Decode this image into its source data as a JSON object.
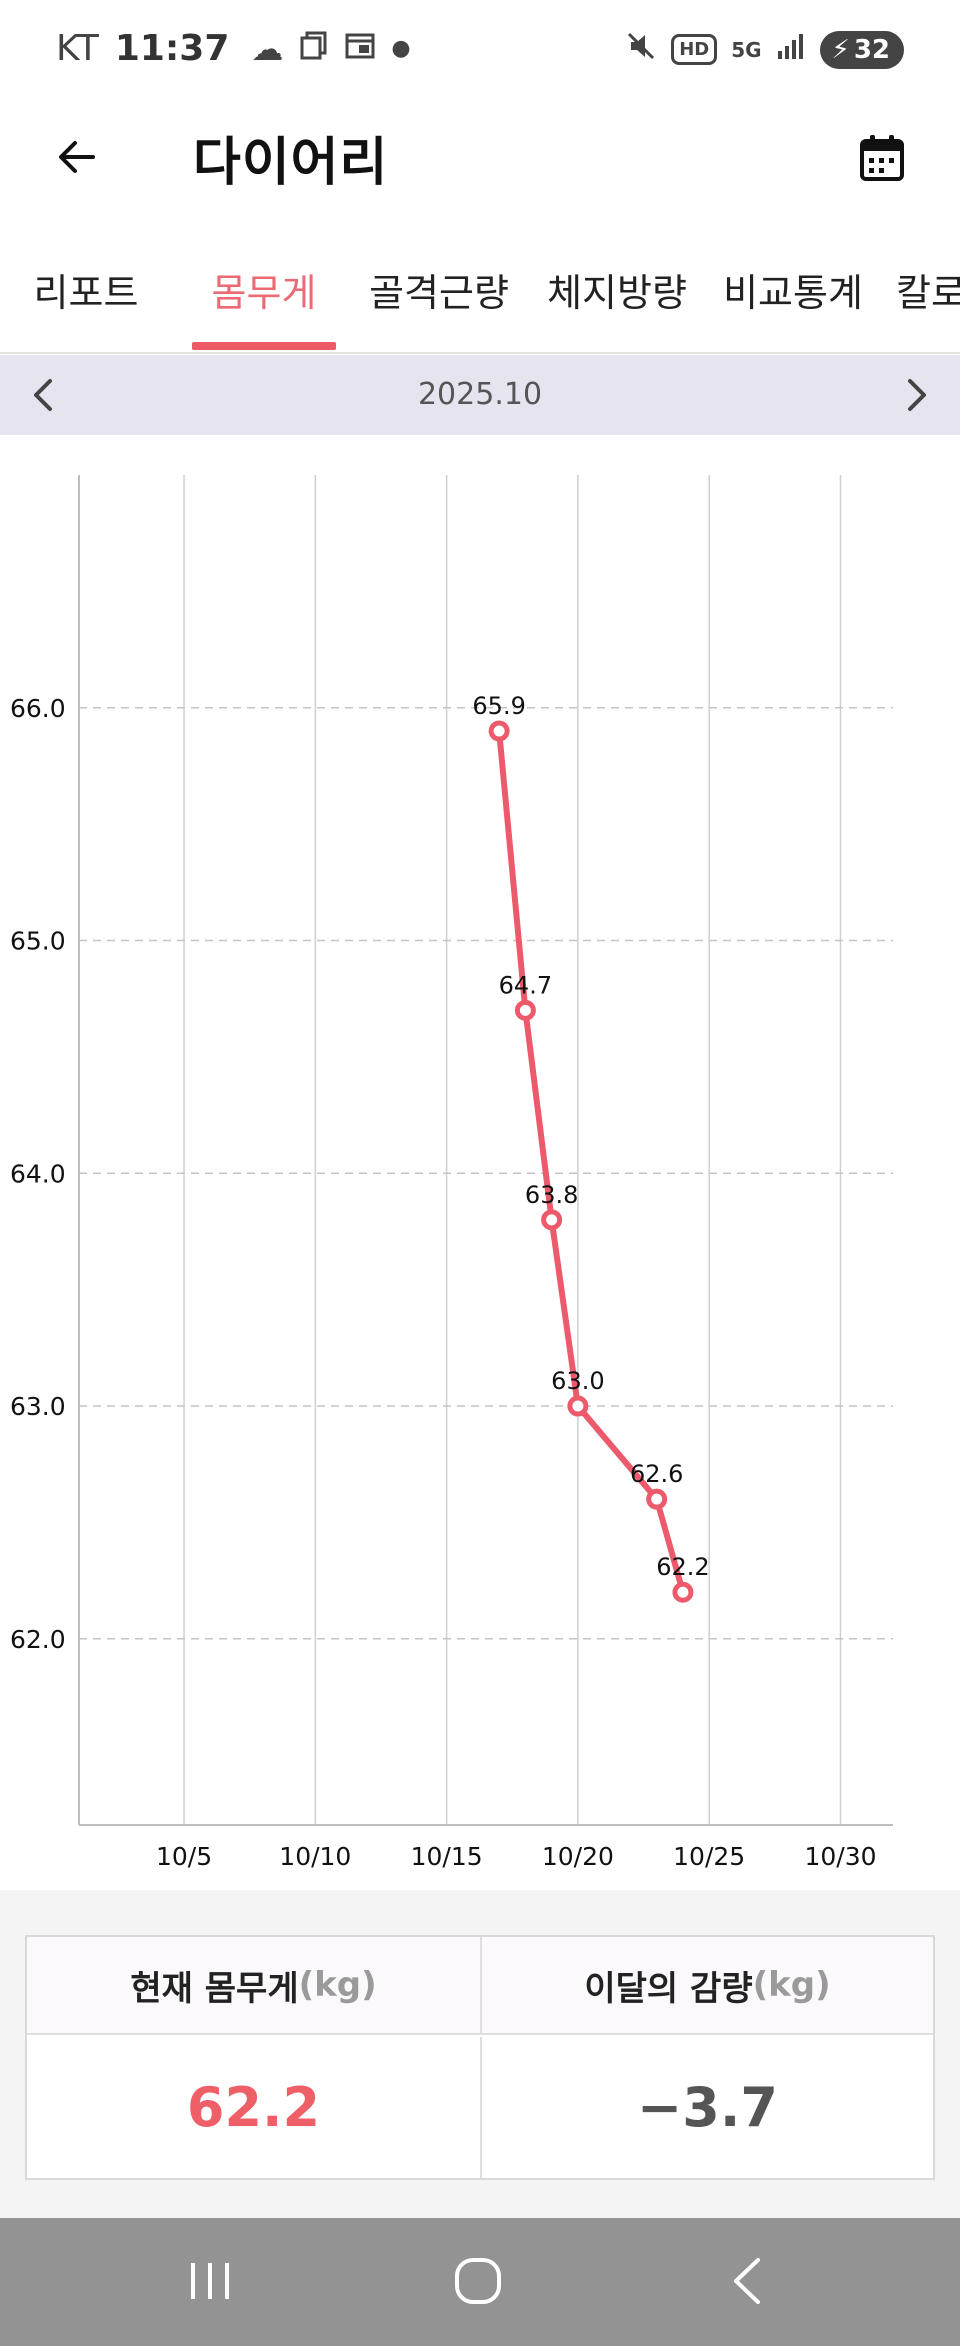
{
  "status_bar": {
    "carrier": "KT",
    "time": "11:37",
    "icons_left": [
      "cloud-icon",
      "copy-icon",
      "calendar-notif-icon",
      "dot-icon"
    ],
    "icons_right": [
      "mute-vibrate-icon",
      "hd-icon",
      "5g-icon",
      "signal-icon"
    ],
    "hd_label": "HD",
    "network_label": "5G",
    "battery": "32"
  },
  "header": {
    "title": "다이어리",
    "back_icon": "arrow-left-icon",
    "calendar_icon": "calendar-icon"
  },
  "tabs": [
    {
      "label": "리포트",
      "active": false
    },
    {
      "label": "몸무게",
      "active": true
    },
    {
      "label": "골격근량",
      "active": false
    },
    {
      "label": "체지방량",
      "active": false
    },
    {
      "label": "비교통계",
      "active": false
    },
    {
      "label": "칼로",
      "active": false
    }
  ],
  "month_bar": {
    "label": "2025.10",
    "prev_icon": "chevron-left-icon",
    "next_icon": "chevron-right-icon"
  },
  "chart_data": {
    "type": "line",
    "title": "",
    "xlabel": "",
    "ylabel": "",
    "x_ticks": [
      "10/5",
      "10/10",
      "10/15",
      "10/20",
      "10/25",
      "10/30"
    ],
    "y_ticks": [
      "62.0",
      "63.0",
      "64.0",
      "65.0",
      "66.0"
    ],
    "xlim": [
      1,
      32
    ],
    "ylim": [
      61.2,
      67.0
    ],
    "grid": true,
    "legend": "none",
    "series": [
      {
        "color": "#ec5a6c",
        "points": [
          {
            "x": 17,
            "date": "10/17",
            "y": 65.9,
            "label": "65.9"
          },
          {
            "x": 18,
            "date": "10/18",
            "y": 64.7,
            "label": "64.7"
          },
          {
            "x": 19,
            "date": "10/19",
            "y": 63.8,
            "label": "63.8"
          },
          {
            "x": 20,
            "date": "10/20",
            "y": 63.0,
            "label": "63.0"
          },
          {
            "x": 23,
            "date": "10/23",
            "y": 62.6,
            "label": "62.6"
          },
          {
            "x": 24,
            "date": "10/24",
            "y": 62.2,
            "label": "62.2"
          }
        ]
      }
    ]
  },
  "summary": {
    "current_label": "현재 몸무게",
    "current_unit": "(kg)",
    "current_value": "62.2",
    "change_label": "이달의 감량",
    "change_unit": "(kg)",
    "change_value": "−3.7",
    "accent_color": "#ef5f68"
  },
  "nav_bar": {
    "recent_icon": "recent-apps-icon",
    "home_icon": "home-icon",
    "back_icon": "back-nav-icon"
  }
}
